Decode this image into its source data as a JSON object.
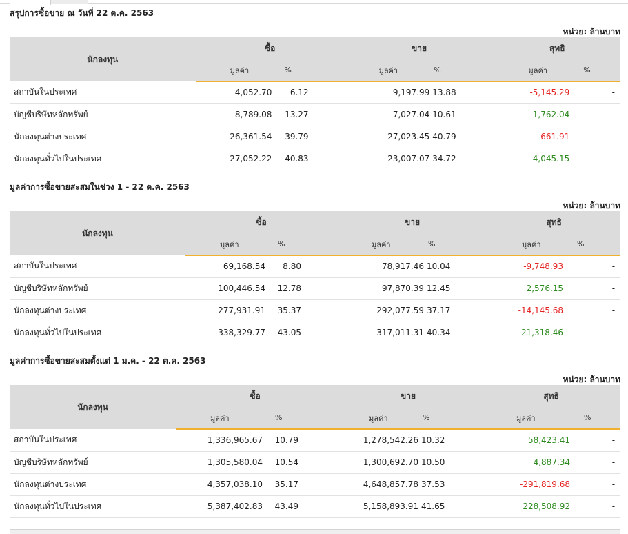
{
  "unit_label": "หน่วย: ล้านบาท",
  "headers": {
    "investor": "นักลงทุน",
    "buy": "ซื้อ",
    "sell": "ขาย",
    "net": "สุทธิ",
    "value": "มูลค่า",
    "percent": "%"
  },
  "colors": {
    "positive": "#2d8a1e",
    "negative": "#e52222",
    "header_bg": "#dcdcdc",
    "accent_line": "#f0b030"
  },
  "sections": [
    {
      "title": "สรุปการซื้อขาย ณ วันที่ 22 ต.ค. 2563",
      "rows": [
        {
          "investor": "สถาบันในประเทศ",
          "buy_value": "4,052.70",
          "buy_pct": "6.12",
          "sell_value": "9,197.99",
          "sell_pct": "13.88",
          "net_value": "-5,145.29",
          "net_sign": "negative",
          "net_pct": "-"
        },
        {
          "investor": "บัญชีบริษัทหลักทรัพย์",
          "buy_value": "8,789.08",
          "buy_pct": "13.27",
          "sell_value": "7,027.04",
          "sell_pct": "10.61",
          "net_value": "1,762.04",
          "net_sign": "positive",
          "net_pct": "-"
        },
        {
          "investor": "นักลงทุนต่างประเทศ",
          "buy_value": "26,361.54",
          "buy_pct": "39.79",
          "sell_value": "27,023.45",
          "sell_pct": "40.79",
          "net_value": "-661.91",
          "net_sign": "negative",
          "net_pct": "-"
        },
        {
          "investor": "นักลงทุนทั่วไปในประเทศ",
          "buy_value": "27,052.22",
          "buy_pct": "40.83",
          "sell_value": "23,007.07",
          "sell_pct": "34.72",
          "net_value": "4,045.15",
          "net_sign": "positive",
          "net_pct": "-"
        }
      ]
    },
    {
      "title": "มูลค่าการซื้อขายสะสมในช่วง 1 - 22 ต.ค. 2563",
      "rows": [
        {
          "investor": "สถาบันในประเทศ",
          "buy_value": "69,168.54",
          "buy_pct": "8.80",
          "sell_value": "78,917.46",
          "sell_pct": "10.04",
          "net_value": "-9,748.93",
          "net_sign": "negative",
          "net_pct": "-"
        },
        {
          "investor": "บัญชีบริษัทหลักทรัพย์",
          "buy_value": "100,446.54",
          "buy_pct": "12.78",
          "sell_value": "97,870.39",
          "sell_pct": "12.45",
          "net_value": "2,576.15",
          "net_sign": "positive",
          "net_pct": "-"
        },
        {
          "investor": "นักลงทุนต่างประเทศ",
          "buy_value": "277,931.91",
          "buy_pct": "35.37",
          "sell_value": "292,077.59",
          "sell_pct": "37.17",
          "net_value": "-14,145.68",
          "net_sign": "negative",
          "net_pct": "-"
        },
        {
          "investor": "นักลงทุนทั่วไปในประเทศ",
          "buy_value": "338,329.77",
          "buy_pct": "43.05",
          "sell_value": "317,011.31",
          "sell_pct": "40.34",
          "net_value": "21,318.46",
          "net_sign": "positive",
          "net_pct": "-"
        }
      ]
    },
    {
      "title": "มูลค่าการซื้อขายสะสมตั้งแต่ 1 ม.ค. - 22 ต.ค. 2563",
      "rows": [
        {
          "investor": "สถาบันในประเทศ",
          "buy_value": "1,336,965.67",
          "buy_pct": "10.79",
          "sell_value": "1,278,542.26",
          "sell_pct": "10.32",
          "net_value": "58,423.41",
          "net_sign": "positive",
          "net_pct": "-"
        },
        {
          "investor": "บัญชีบริษัทหลักทรัพย์",
          "buy_value": "1,305,580.04",
          "buy_pct": "10.54",
          "sell_value": "1,300,692.70",
          "sell_pct": "10.50",
          "net_value": "4,887.34",
          "net_sign": "positive",
          "net_pct": "-"
        },
        {
          "investor": "นักลงทุนต่างประเทศ",
          "buy_value": "4,357,038.10",
          "buy_pct": "35.17",
          "sell_value": "4,648,857.78",
          "sell_pct": "37.53",
          "net_value": "-291,819.68",
          "net_sign": "negative",
          "net_pct": "-"
        },
        {
          "investor": "นักลงทุนทั่วไปในประเทศ",
          "buy_value": "5,387,402.83",
          "buy_pct": "43.49",
          "sell_value": "5,158,893.91",
          "sell_pct": "41.65",
          "net_value": "228,508.92",
          "net_sign": "positive",
          "net_pct": "-"
        }
      ]
    }
  ]
}
